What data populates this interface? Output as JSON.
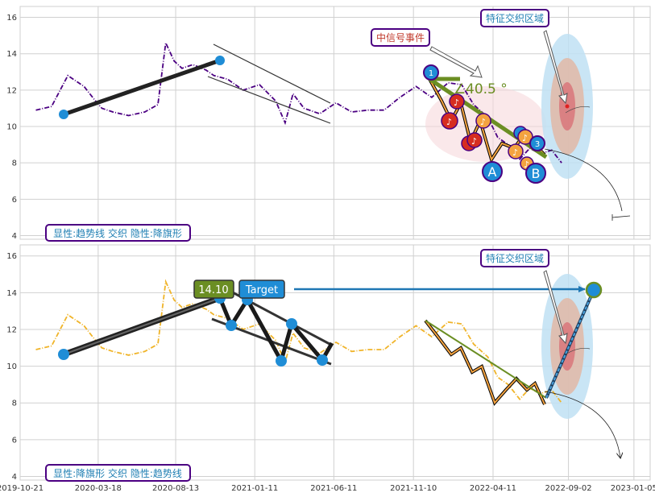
{
  "colors": {
    "top_price": "#4b0082",
    "bottom_price": "#f0b429",
    "trend_line": "#222222",
    "pivot_blue": "#1f8dd6",
    "olive": "#6b8e23",
    "event_red": "#d62d20",
    "event_orange": "#f4a340",
    "box_border": "#4b0082",
    "box_text_blue": "#1f7fb3",
    "box_text_red": "#c0392b",
    "zone_outer": "#bfe0f3",
    "zone_mid": "#e2b8a6",
    "zone_inner": "#d9767a"
  },
  "annotations": {
    "top_zone_label": "特征交织区域",
    "top_event_label": "中信号事件",
    "top_angle_label": "40.5 °",
    "top_point_a": "A",
    "top_point_b": "B",
    "top_point_1": "1",
    "top_point_3": "3",
    "top_caption": "显性:趋势线 交织 隐性:降旗形",
    "bottom_zone_label": "特征交织区域",
    "bottom_price_label": "14.10",
    "bottom_target_label": "Target",
    "bottom_caption": "显性:降旗形 交织 隐性:趋势线"
  },
  "chart_data": [
    {
      "type": "line",
      "panel": "top",
      "x_tick_labels": [
        "2019-10-21",
        "2020-03-18",
        "2020-08-13",
        "2021-01-11",
        "2021-06-11",
        "2021-11-10",
        "2022-04-11",
        "2022-09-02",
        "2023-01-05"
      ],
      "y_ticks": [
        4,
        6,
        8,
        10,
        12,
        14,
        16
      ],
      "ylim": [
        3.8,
        16.6
      ],
      "grid": true,
      "series": [
        {
          "x": [
            "2019-11-20",
            "2019-12-20",
            "2020-01-20",
            "2020-02-20",
            "2020-03-10",
            "2020-03-25",
            "2020-04-15",
            "2020-05-15",
            "2020-06-15",
            "2020-07-10",
            "2020-07-25",
            "2020-08-10",
            "2020-08-25",
            "2020-09-15",
            "2020-10-10",
            "2020-10-25",
            "2020-11-20",
            "2020-12-20",
            "2021-01-20",
            "2021-02-20",
            "2021-03-10",
            "2021-03-25",
            "2021-04-15",
            "2021-05-15",
            "2021-06-15",
            "2021-07-15",
            "2021-08-15",
            "2021-09-15",
            "2021-10-15",
            "2021-11-15",
            "2021-12-15",
            "2022-01-15",
            "2022-02-10",
            "2022-03-05",
            "2022-04-01",
            "2022-04-20",
            "2022-05-10",
            "2022-06-01",
            "2022-06-20",
            "2022-07-10",
            "2022-08-01",
            "2022-08-20"
          ],
          "values": [
            10.9,
            11.1,
            12.8,
            12.2,
            11.5,
            11.0,
            10.8,
            10.6,
            10.8,
            11.2,
            14.6,
            13.6,
            13.2,
            13.4,
            13.1,
            12.8,
            12.6,
            12.0,
            12.3,
            11.4,
            10.2,
            11.8,
            11.0,
            10.7,
            11.3,
            10.8,
            10.9,
            10.9,
            11.6,
            12.2,
            11.6,
            12.4,
            12.3,
            11.2,
            10.5,
            9.4,
            9.0,
            8.2,
            8.8,
            8.5,
            8.7,
            8.0
          ]
        }
      ]
    },
    {
      "type": "line",
      "panel": "bottom",
      "x_tick_labels": [
        "2019-10-21",
        "2020-03-18",
        "2020-08-13",
        "2021-01-11",
        "2021-06-11",
        "2021-11-10",
        "2022-04-11",
        "2022-09-02",
        "2023-01-05"
      ],
      "y_ticks": [
        4,
        6,
        8,
        10,
        12,
        14,
        16
      ],
      "ylim": [
        3.8,
        16.6
      ],
      "grid": true,
      "series": [
        {
          "x": [
            "2019-11-20",
            "2019-12-20",
            "2020-01-20",
            "2020-02-20",
            "2020-03-10",
            "2020-03-25",
            "2020-04-15",
            "2020-05-15",
            "2020-06-15",
            "2020-07-10",
            "2020-07-25",
            "2020-08-10",
            "2020-08-25",
            "2020-09-15",
            "2020-10-10",
            "2020-10-25",
            "2020-11-20",
            "2020-12-20",
            "2021-01-20",
            "2021-02-20",
            "2021-03-10",
            "2021-03-25",
            "2021-04-15",
            "2021-05-15",
            "2021-06-15",
            "2021-07-15",
            "2021-08-15",
            "2021-09-15",
            "2021-10-15",
            "2021-11-15",
            "2021-12-15",
            "2022-01-15",
            "2022-02-10",
            "2022-03-05",
            "2022-04-01",
            "2022-04-20",
            "2022-05-10",
            "2022-06-01",
            "2022-06-20",
            "2022-07-10",
            "2022-08-01",
            "2022-08-20"
          ],
          "values": [
            10.9,
            11.1,
            12.8,
            12.2,
            11.5,
            11.0,
            10.8,
            10.6,
            10.8,
            11.2,
            14.6,
            13.6,
            13.2,
            13.4,
            13.1,
            12.8,
            12.6,
            12.0,
            12.3,
            11.4,
            10.2,
            11.8,
            11.0,
            10.7,
            11.3,
            10.8,
            10.9,
            10.9,
            11.6,
            12.2,
            11.6,
            12.4,
            12.3,
            11.2,
            10.5,
            9.4,
            9.0,
            8.2,
            8.8,
            8.5,
            8.7,
            8.0
          ]
        }
      ]
    }
  ]
}
